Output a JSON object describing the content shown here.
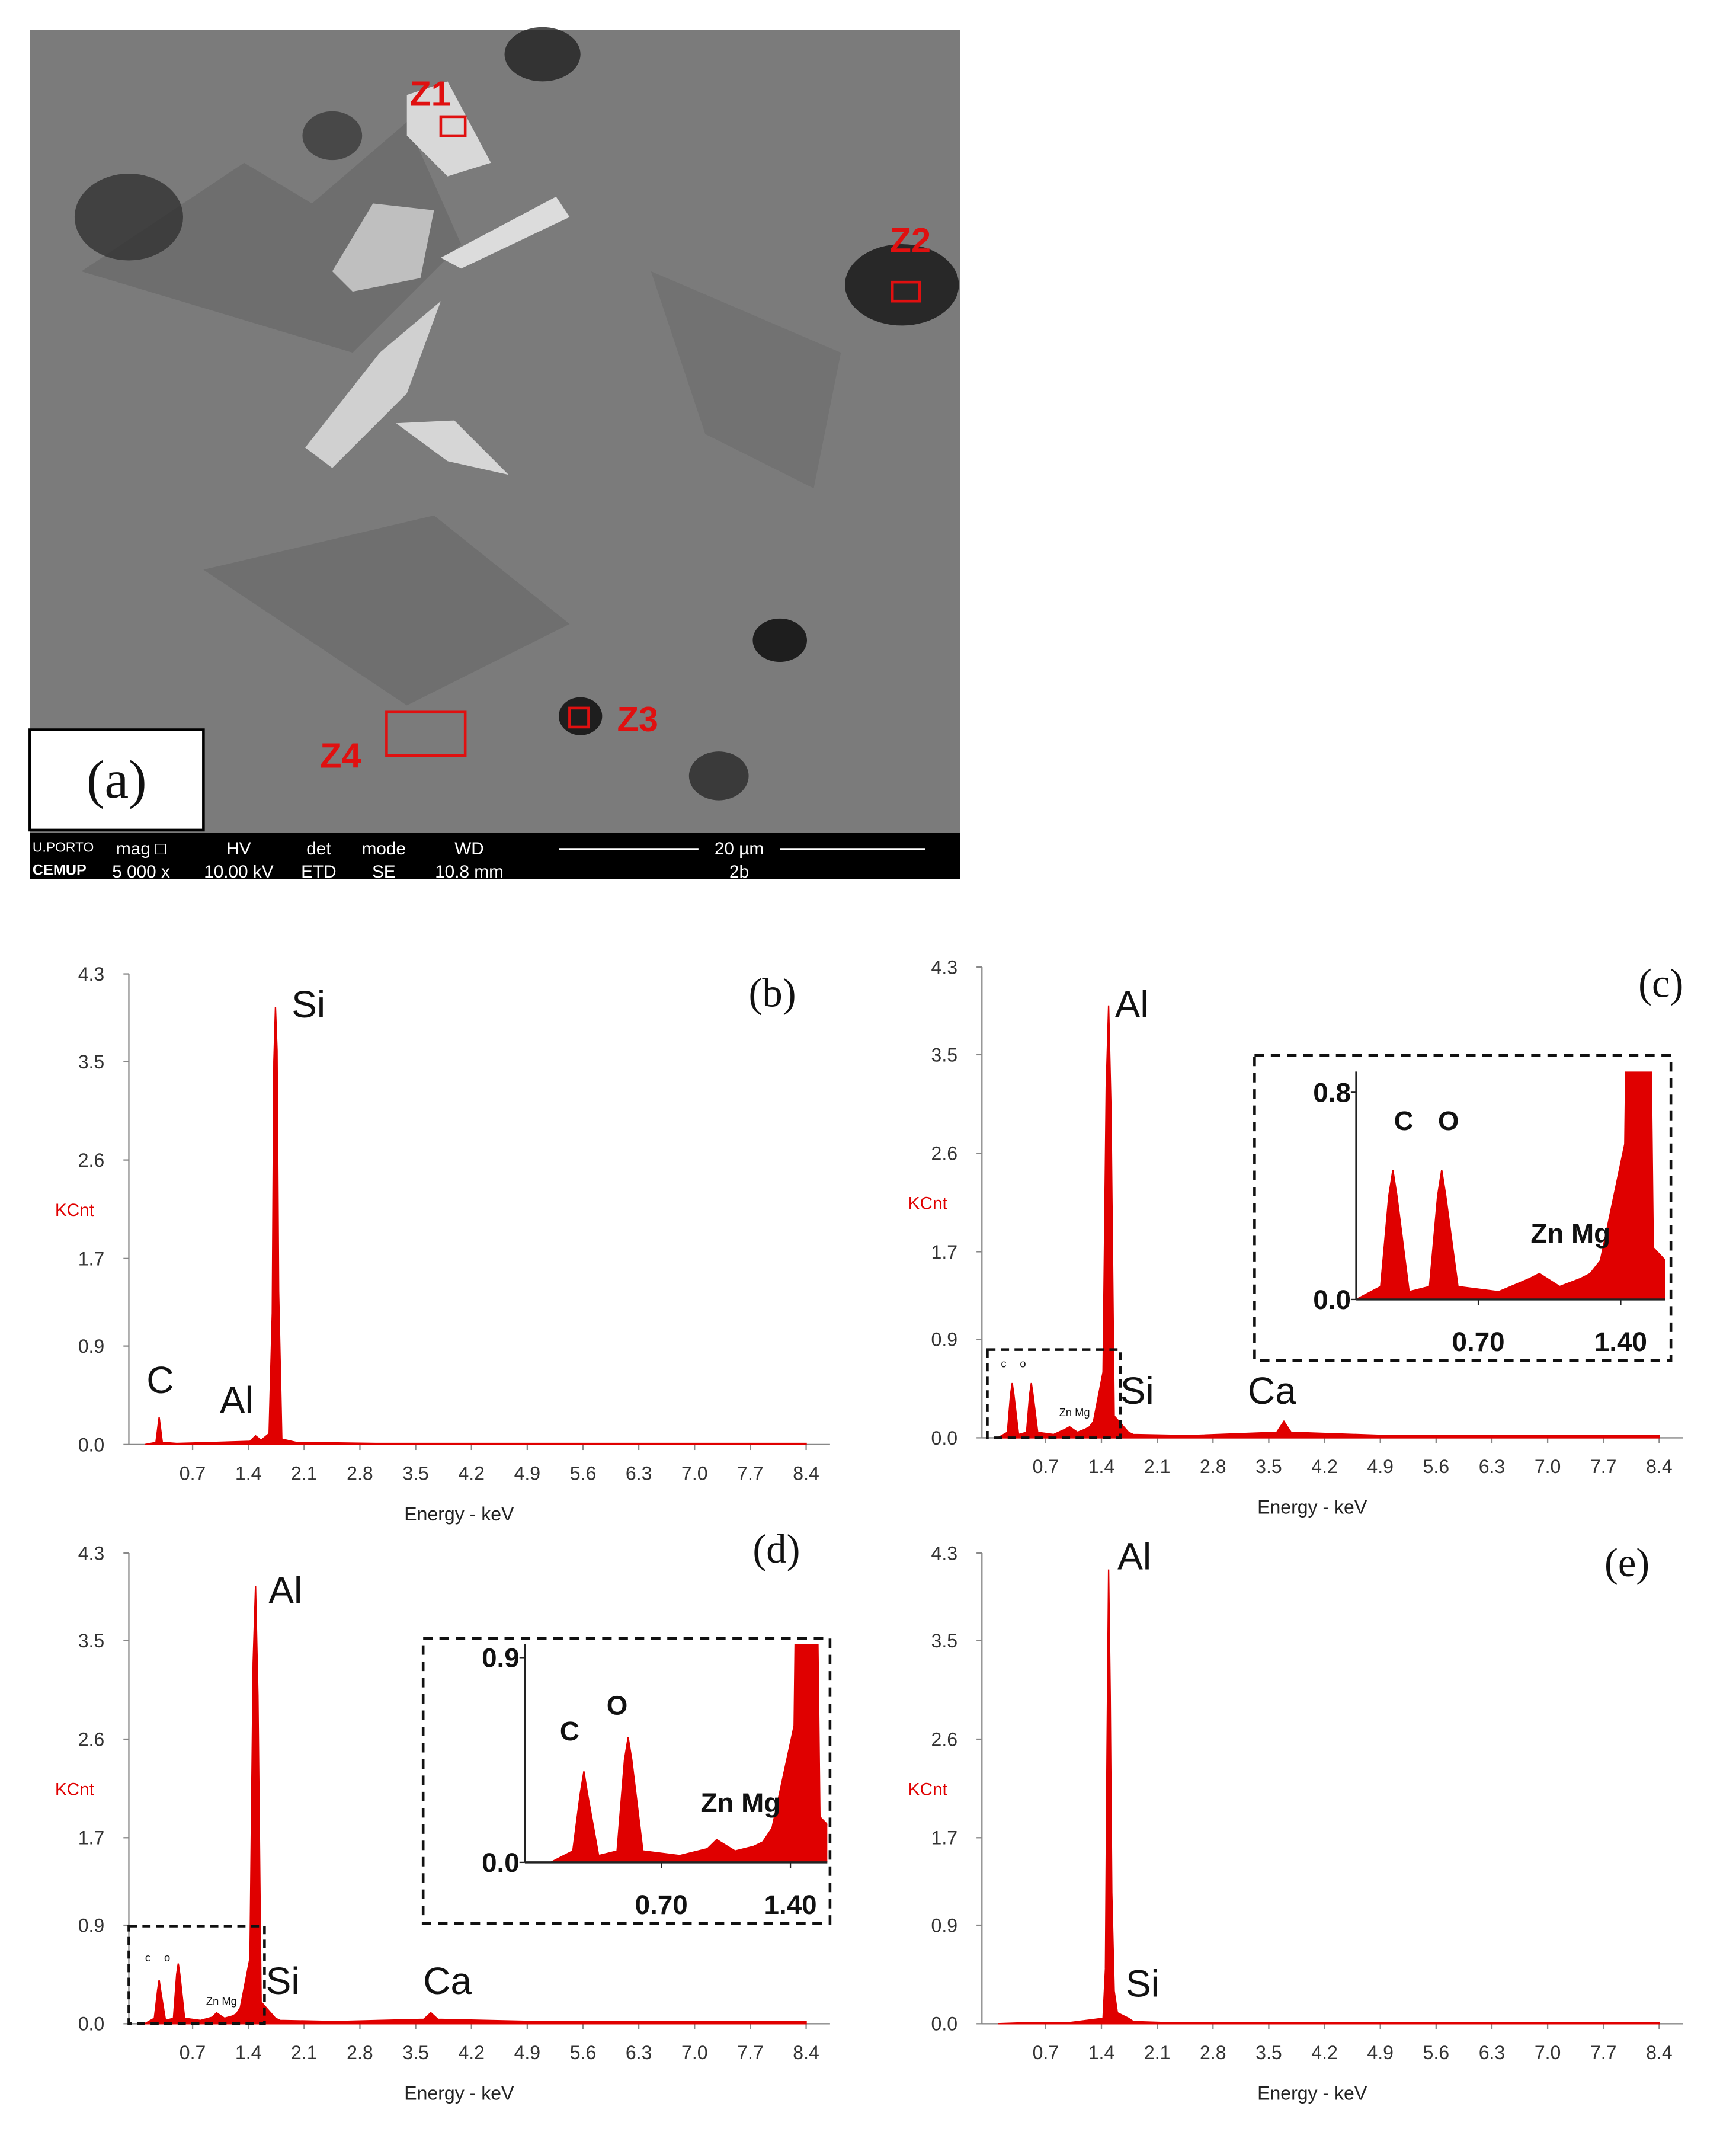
{
  "image": {
    "label": "(a)",
    "zones": [
      "Z1",
      "Z2",
      "Z3",
      "Z4"
    ],
    "info_bar": {
      "logo": [
        "U.PORTO",
        "CEMUP"
      ],
      "headers": [
        "mag □",
        "HV",
        "det",
        "mode",
        "WD"
      ],
      "values": [
        "5 000 x",
        "10.00 kV",
        "ETD",
        "SE",
        "10.8 mm"
      ],
      "scale": "20 µm",
      "id": "2b"
    }
  },
  "chart_data": [
    {
      "type": "area",
      "panel": "(b)",
      "y_label": "KCnt",
      "x_label": "Energy - keV",
      "color": "#e00000",
      "xlim": [
        -0.1,
        8.7
      ],
      "ylim": [
        0,
        4.3
      ],
      "xticks": [
        0.7,
        1.4,
        2.1,
        2.8,
        3.5,
        4.2,
        4.9,
        5.6,
        6.3,
        {
          "value": 7,
          "label": "7.0"
        },
        7.7,
        8.4
      ],
      "yticks": [
        {
          "value": 0,
          "label": "0.0"
        },
        0.9,
        1.7,
        2.6,
        3.5,
        4.3
      ],
      "x": [
        0.1,
        0.24,
        0.28,
        0.32,
        0.5,
        1.0,
        1.42,
        1.49,
        1.56,
        1.66,
        1.7,
        1.72,
        1.74,
        1.76,
        1.78,
        1.82,
        2.0,
        3.0,
        5.0,
        8.4
      ],
      "values": [
        0,
        0.02,
        0.25,
        0.02,
        0.01,
        0.02,
        0.03,
        0.08,
        0.04,
        0.1,
        1.2,
        3.5,
        4.0,
        3.6,
        1.4,
        0.05,
        0.02,
        0.01,
        0.01,
        0.01
      ],
      "annotations": [
        "Si",
        "Al",
        "C"
      ]
    },
    {
      "type": "area",
      "panel": "(c)",
      "y_label": "KCnt",
      "x_label": "Energy - keV",
      "color": "#e00000",
      "xlim": [
        -0.1,
        8.7
      ],
      "ylim": [
        0,
        4.3
      ],
      "xticks": [
        0.7,
        1.4,
        2.1,
        2.8,
        3.5,
        4.2,
        4.9,
        5.6,
        6.3,
        {
          "value": 7,
          "label": "7.0"
        },
        7.7,
        8.4
      ],
      "yticks": [
        {
          "value": 0,
          "label": "0.0"
        },
        0.9,
        1.7,
        2.6,
        3.5,
        4.3
      ],
      "x": [
        0.1,
        0.22,
        0.26,
        0.28,
        0.3,
        0.36,
        0.46,
        0.5,
        0.52,
        0.54,
        0.6,
        0.8,
        0.95,
        1.0,
        1.1,
        1.2,
        1.25,
        1.3,
        1.42,
        1.46,
        1.49,
        1.52,
        1.56,
        1.74,
        1.8,
        2.5,
        3.6,
        3.69,
        3.78,
        5.0,
        8.4
      ],
      "values": [
        0,
        0.05,
        0.4,
        0.5,
        0.4,
        0.03,
        0.05,
        0.4,
        0.5,
        0.4,
        0.05,
        0.03,
        0.08,
        0.1,
        0.05,
        0.08,
        0.1,
        0.15,
        0.6,
        3.2,
        3.95,
        3.0,
        0.2,
        0.05,
        0.03,
        0.02,
        0.05,
        0.15,
        0.05,
        0.02,
        0.02
      ],
      "annotations": [
        "Al",
        "Si",
        "Ca",
        "c",
        "o",
        "Zn Mg"
      ],
      "inset": {
        "xlim": [
          0.1,
          1.62
        ],
        "ylim": [
          0,
          0.88
        ],
        "xticks": [
          {
            "value": 0.7,
            "label": "0.70"
          },
          {
            "value": 1.4,
            "label": "1.40"
          }
        ],
        "yticks": [
          {
            "value": 0,
            "label": "0.0"
          },
          0.8
        ],
        "annotations": [
          "C",
          "O",
          "Zn Mg"
        ]
      }
    },
    {
      "type": "area",
      "panel": "(d)",
      "y_label": "KCnt",
      "x_label": "Energy - keV",
      "color": "#e00000",
      "xlim": [
        -0.1,
        8.7
      ],
      "ylim": [
        0,
        4.3
      ],
      "xticks": [
        0.7,
        1.4,
        2.1,
        2.8,
        3.5,
        4.2,
        4.9,
        5.6,
        6.3,
        {
          "value": 7,
          "label": "7.0"
        },
        7.7,
        8.4
      ],
      "yticks": [
        {
          "value": 0,
          "label": "0.0"
        },
        0.9,
        1.7,
        2.6,
        3.5,
        4.3
      ],
      "x": [
        0.1,
        0.22,
        0.26,
        0.28,
        0.3,
        0.36,
        0.46,
        0.5,
        0.52,
        0.54,
        0.6,
        0.8,
        0.95,
        1.0,
        1.1,
        1.2,
        1.25,
        1.3,
        1.42,
        1.46,
        1.49,
        1.52,
        1.56,
        1.74,
        1.8,
        2.5,
        3.6,
        3.69,
        3.78,
        5.0,
        8.4
      ],
      "values": [
        0,
        0.05,
        0.3,
        0.4,
        0.3,
        0.03,
        0.05,
        0.45,
        0.55,
        0.45,
        0.05,
        0.03,
        0.06,
        0.1,
        0.05,
        0.07,
        0.09,
        0.15,
        0.6,
        3.3,
        4.0,
        3.0,
        0.2,
        0.05,
        0.03,
        0.02,
        0.04,
        0.1,
        0.04,
        0.02,
        0.02
      ],
      "annotations": [
        "Al",
        "Si",
        "Ca",
        "c",
        "o",
        "Zn Mg"
      ],
      "inset": {
        "xlim": [
          -0.04,
          1.6
        ],
        "ylim": [
          0,
          0.96
        ],
        "xticks": [
          {
            "value": 0.7,
            "label": "0.70"
          },
          {
            "value": 1.4,
            "label": "1.40"
          }
        ],
        "yticks": [
          {
            "value": 0,
            "label": "0.0"
          },
          0.9
        ],
        "annotations": [
          "C",
          "O",
          "Zn Mg"
        ]
      }
    },
    {
      "type": "area",
      "panel": "(e)",
      "y_label": "KCnt",
      "x_label": "Energy - keV",
      "color": "#e00000",
      "xlim": [
        -0.1,
        8.7
      ],
      "ylim": [
        0,
        4.3
      ],
      "xticks": [
        0.7,
        1.4,
        2.1,
        2.8,
        3.5,
        4.2,
        4.9,
        5.6,
        6.3,
        {
          "value": 7,
          "label": "7.0"
        },
        7.7,
        8.4
      ],
      "yticks": [
        {
          "value": 0,
          "label": "0.0"
        },
        0.9,
        1.7,
        2.6,
        3.5,
        4.3
      ],
      "x": [
        0.1,
        0.5,
        1.0,
        1.42,
        1.45,
        1.47,
        1.49,
        1.51,
        1.53,
        1.56,
        1.6,
        1.74,
        1.8,
        2.2,
        8.4
      ],
      "values": [
        0,
        0.01,
        0.01,
        0.05,
        0.5,
        2.5,
        4.15,
        3.0,
        1.2,
        0.3,
        0.1,
        0.05,
        0.02,
        0.01,
        0.01
      ],
      "annotations": [
        "Al",
        "Si"
      ]
    }
  ]
}
